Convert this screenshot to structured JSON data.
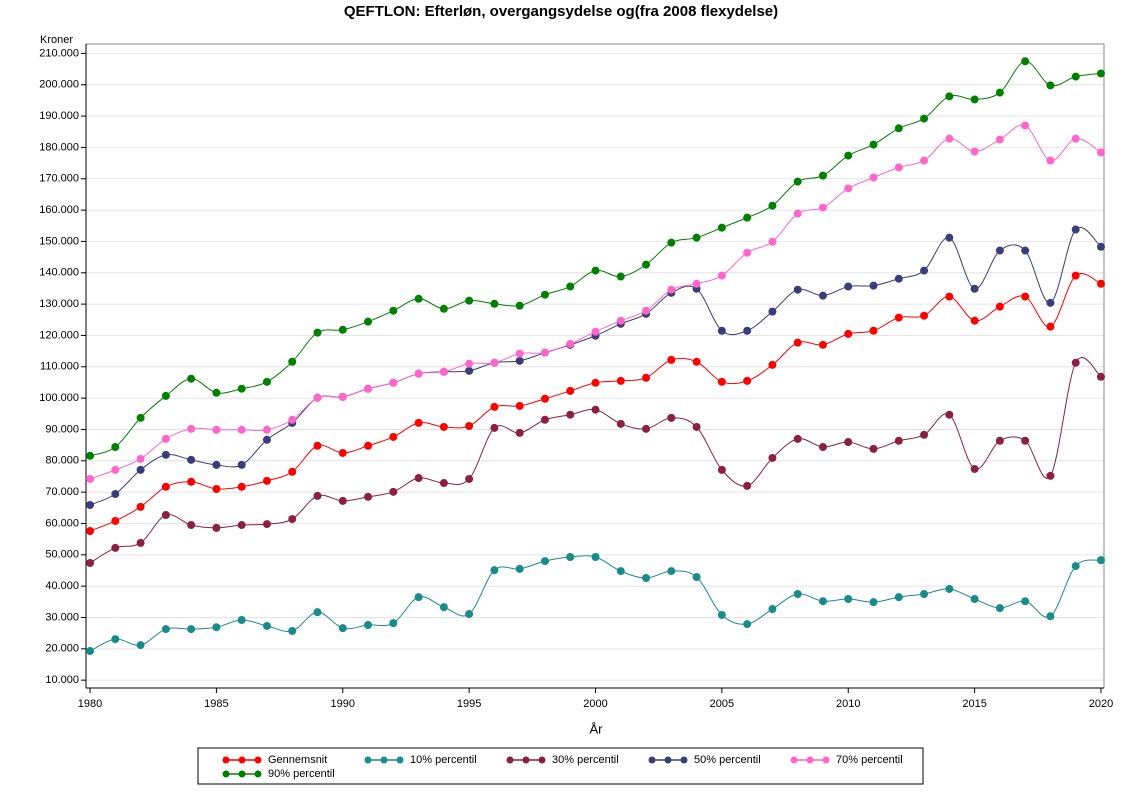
{
  "chart_data": {
    "type": "line",
    "title": "QEFTLON: Efterløn, overgangsydelse og(fra 2008 flexydelse)",
    "y_label": "Kroner",
    "x_label": "År",
    "x": [
      1980,
      1981,
      1982,
      1983,
      1984,
      1985,
      1986,
      1987,
      1988,
      1989,
      1990,
      1991,
      1992,
      1993,
      1994,
      1995,
      1996,
      1997,
      1998,
      1999,
      2000,
      2001,
      2002,
      2003,
      2004,
      2005,
      2006,
      2007,
      2008,
      2009,
      2010,
      2011,
      2012,
      2013,
      2014,
      2015,
      2016,
      2017,
      2018,
      2019,
      2020
    ],
    "xlim": [
      1979.84,
      2020.12
    ],
    "xticks": [
      1980,
      1985,
      1990,
      1995,
      2000,
      2005,
      2010,
      2015,
      2020
    ],
    "ylim": [
      7500,
      213000
    ],
    "yticks": [
      {
        "value": 10000,
        "label": "10.000"
      },
      {
        "value": 20000,
        "label": "20.000"
      },
      {
        "value": 30000,
        "label": "30.000"
      },
      {
        "value": 40000,
        "label": "40.000"
      },
      {
        "value": 50000,
        "label": "50.000"
      },
      {
        "value": 60000,
        "label": "60.000"
      },
      {
        "value": 70000,
        "label": "70.000"
      },
      {
        "value": 80000,
        "label": "80.000"
      },
      {
        "value": 90000,
        "label": "90.000"
      },
      {
        "value": 100000,
        "label": "100.000"
      },
      {
        "value": 110000,
        "label": "110.000"
      },
      {
        "value": 120000,
        "label": "120.000"
      },
      {
        "value": 130000,
        "label": "130.000"
      },
      {
        "value": 140000,
        "label": "140.000"
      },
      {
        "value": 150000,
        "label": "150.000"
      },
      {
        "value": 160000,
        "label": "160.000"
      },
      {
        "value": 170000,
        "label": "170.000"
      },
      {
        "value": 180000,
        "label": "180.000"
      },
      {
        "value": 190000,
        "label": "190.000"
      },
      {
        "value": 200000,
        "label": "200.000"
      },
      {
        "value": 210000,
        "label": "210.000"
      }
    ],
    "grid": true,
    "legend": "bottom",
    "series": [
      {
        "name": "Gennemsnit",
        "color": "#ff0000",
        "values": [
          57600,
          60800,
          65300,
          71700,
          73300,
          71000,
          71700,
          73600,
          76500,
          84800,
          82500,
          84800,
          87600,
          92100,
          90800,
          91100,
          97200,
          97500,
          99800,
          102300,
          104900,
          105500,
          106500,
          112200,
          111600,
          105200,
          105500,
          110600,
          117700,
          117000,
          120500,
          121500,
          125700,
          126300,
          132400,
          124700,
          129200,
          132400,
          122800,
          139100,
          136500
        ]
      },
      {
        "name": "10% percentil",
        "color": "#1a8b8b",
        "values": [
          19300,
          23100,
          21200,
          26300,
          26300,
          26900,
          29200,
          27300,
          25700,
          31700,
          26600,
          27600,
          28200,
          36500,
          33300,
          31100,
          45100,
          45500,
          48000,
          49300,
          49300,
          44800,
          42600,
          44800,
          42900,
          30800,
          27900,
          32700,
          37500,
          35200,
          35900,
          34900,
          36500,
          37500,
          39100,
          35900,
          33000,
          35200,
          30400,
          46400,
          48300
        ]
      },
      {
        "name": "30% percentil",
        "color": "#8b2040",
        "values": [
          47400,
          52200,
          53800,
          62700,
          59500,
          58600,
          59500,
          59800,
          61400,
          68800,
          67200,
          68500,
          70100,
          74500,
          72900,
          74200,
          90500,
          88900,
          93100,
          94700,
          96300,
          91800,
          90200,
          93700,
          90800,
          77100,
          72000,
          80900,
          87000,
          84400,
          86000,
          83800,
          86400,
          88300,
          94700,
          77400,
          86400,
          86400,
          75200,
          111300,
          106800
        ]
      },
      {
        "name": "50% percentil",
        "color": "#3c3c78",
        "values": [
          65900,
          69400,
          77100,
          81900,
          80300,
          78700,
          78700,
          86700,
          92100,
          100100,
          100400,
          103000,
          104900,
          107800,
          108400,
          108700,
          111300,
          111900,
          114500,
          117000,
          119900,
          123700,
          126900,
          133600,
          134900,
          121500,
          121500,
          127600,
          134600,
          132700,
          135600,
          135900,
          138100,
          140700,
          151200,
          134900,
          147100,
          147100,
          130400,
          153800,
          148300
        ]
      },
      {
        "name": "70% percentil",
        "color": "#ff66cc",
        "values": [
          74200,
          77100,
          80600,
          87000,
          90200,
          89900,
          89900,
          89900,
          93100,
          100100,
          100400,
          103000,
          104900,
          107800,
          108400,
          111000,
          111300,
          114200,
          114500,
          117300,
          121200,
          124700,
          127900,
          134600,
          136500,
          139100,
          146400,
          149900,
          158900,
          160800,
          166900,
          170400,
          173600,
          175800,
          182800,
          178700,
          182500,
          187000,
          175800,
          182800,
          178400
        ]
      },
      {
        "name": "90% percentil",
        "color": "#008000",
        "values": [
          81600,
          84400,
          93700,
          100700,
          106200,
          101700,
          103000,
          105200,
          111600,
          120900,
          121800,
          124400,
          127900,
          131700,
          128500,
          131100,
          130100,
          129500,
          133000,
          135600,
          140700,
          138800,
          142600,
          149600,
          151200,
          154400,
          157600,
          161400,
          169100,
          171000,
          177400,
          180900,
          186100,
          189200,
          196300,
          195300,
          197500,
          207500,
          199800,
          202600,
          203600
        ]
      }
    ]
  }
}
